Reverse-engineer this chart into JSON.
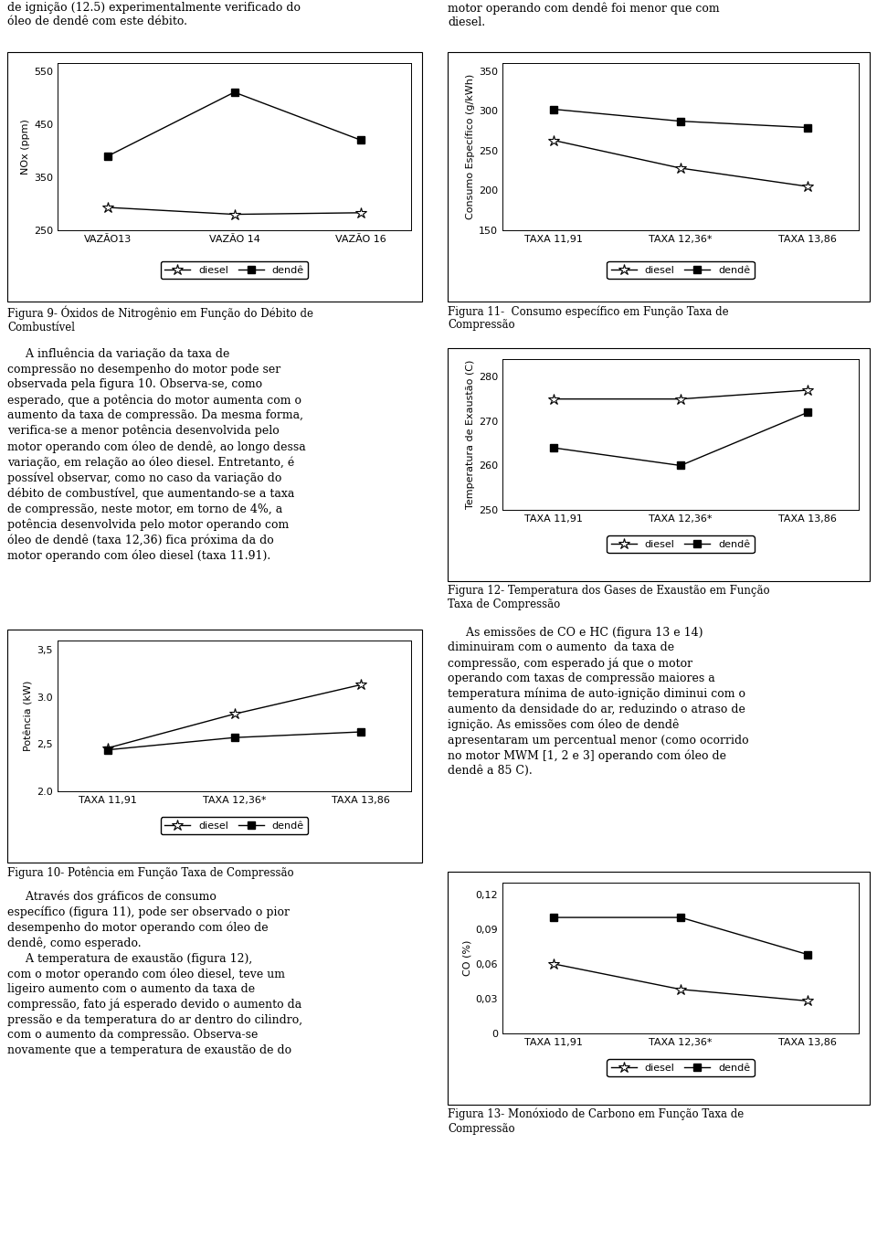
{
  "fig9": {
    "fig_title": "Figura 9- Óxidos de Nitrogênio em Função do Débito de\nCombustível",
    "ylabel": "NOx (ppm)",
    "x_labels": [
      "VAZÃO13",
      "VAZÃO 14",
      "VAZÃO 16"
    ],
    "diesel": [
      293,
      280,
      283
    ],
    "dende": [
      390,
      510,
      420
    ],
    "ylim": [
      250,
      565
    ],
    "yticks": [
      250,
      350,
      450,
      550
    ],
    "legend_diesel": "diesel",
    "legend_dende": "dendê"
  },
  "fig10": {
    "fig_title": "Figura 10- Potência em Função Taxa de Compressão",
    "ylabel": "Potência (kW)",
    "x_labels": [
      "TAXA 11,91",
      "TAXA 12,36*",
      "TAXA 13,86"
    ],
    "diesel": [
      2.46,
      2.82,
      3.13
    ],
    "dende": [
      2.44,
      2.57,
      2.63
    ],
    "ylim": [
      2.0,
      3.6
    ],
    "yticks": [
      2.0,
      2.5,
      3.0,
      3.5
    ],
    "legend_diesel": "diesel",
    "legend_dende": "dendê"
  },
  "fig11": {
    "fig_title": "Figura 11-  Consumo específico em Função Taxa de\nCompressão",
    "ylabel": "Consumo Específico (g/kWh)",
    "x_labels": [
      "TAXA 11,91",
      "TAXA 12,36*",
      "TAXA 13,86"
    ],
    "diesel": [
      263,
      228,
      205
    ],
    "dende": [
      302,
      287,
      279
    ],
    "ylim": [
      150,
      360
    ],
    "yticks": [
      150,
      200,
      250,
      300,
      350
    ],
    "legend_diesel": "diesel",
    "legend_dende": "dendê"
  },
  "fig12": {
    "fig_title": "Figura 12- Temperatura dos Gases de Exaustão em Função\nTaxa de Compressão",
    "ylabel": "Temperatura de Exaustão (C)",
    "x_labels": [
      "TAXA 11,91",
      "TAXA 12,36*",
      "TAXA 13,86"
    ],
    "diesel": [
      275,
      275,
      277
    ],
    "dende": [
      264,
      260,
      272
    ],
    "ylim": [
      250,
      284
    ],
    "yticks": [
      250,
      260,
      270,
      280
    ],
    "legend_diesel": "diesel",
    "legend_dende": "dendê"
  },
  "fig13": {
    "fig_title": "Figura 13- Monóxiodo de Carbono em Função Taxa de\nCompressão",
    "ylabel": "CO (%)",
    "x_labels": [
      "TAXA 11,91",
      "TAXA 12,36*",
      "TAXA 13,86"
    ],
    "diesel": [
      0.06,
      0.038,
      0.028
    ],
    "dende": [
      0.1,
      0.1,
      0.068
    ],
    "ylim": [
      0,
      0.13
    ],
    "yticks": [
      0,
      0.03,
      0.06,
      0.09,
      0.12
    ],
    "legend_diesel": "diesel",
    "legend_dende": "dendê"
  },
  "text_blocks": {
    "top_left": "de ignição (12.5) experimentalmente verificado do\nóleo de dendê com este débito.",
    "top_right": "motor operando com dendê foi menor que com\ndiesel.",
    "mid_left_1": "     A influência da variação da taxa de\ncompressão no desempenho do motor pode ser\nobservada pela figura 10. Observa-se, como\nesperado, que a potência do motor aumenta com o\naumento da taxa de compressão. Da mesma forma,\nverifica-se a menor potência desenvolvida pelo\nmotor operando com óleo de dendê, ao longo dessa\nvariação, em relação ao óleo diesel. Entretanto, é\npossível observar, como no caso da variação do\ndébito de combustível, que aumentando-se a taxa\nde compressão, neste motor, em torno de 4%, a\npotência desenvolvida pelo motor operando com\nóleo de dendê (taxa 12,36) fica próxima da do\nmotor operando com óleo diesel (taxa 11.91).",
    "mid_right": "     As emissões de CO e HC (figura 13 e 14)\ndiminuiram com o aumento  da taxa de\ncompressão, com esperado já que o motor\noperando com taxas de compressão maiores a\ntemperatura mínima de auto-ignição diminui com o\naumento da densidade do ar, reduzindo o atraso de\nignição. As emissões com óleo de dendê\napresentaram um percentual menor (como ocorrido\nno motor MWM [1, 2 e 3] operando com óleo de\ndendê a 85 C).",
    "bot_left": "     Através dos gráficos de consumo\nespecífico (figura 11), pode ser observado o pior\ndesempenho do motor operando com óleo de\ndendê, como esperado.\n     A temperatura de exaustão (figura 12),\ncom o motor operando com óleo diesel, teve um\nligeiro aumento com o aumento da taxa de\ncompressão, fato já esperado devido o aumento da\npressão e da temperatura do ar dentro do cilindro,\ncom o aumento da compressão. Observa-se\nnovamente que a temperatura de exaustão de do"
  }
}
